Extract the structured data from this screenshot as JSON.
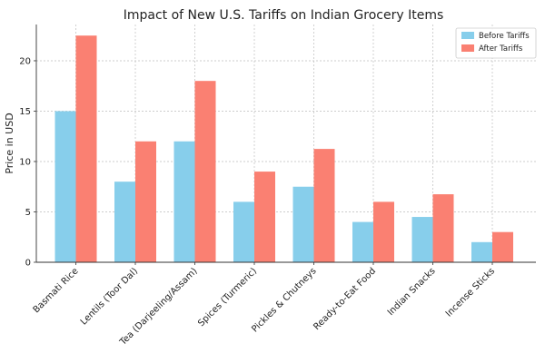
{
  "chart_data": {
    "type": "bar",
    "title": "Impact of New U.S. Tariffs on Indian Grocery Items",
    "xlabel": "",
    "ylabel": "Price in USD",
    "ylim": [
      0,
      23.6
    ],
    "yticks": [
      0,
      5,
      10,
      15,
      20
    ],
    "grid": true,
    "legend_position": "top-right",
    "categories": [
      "Basmati Rice",
      "Lentils (Toor Dal)",
      "Tea (Darjeeling/Assam)",
      "Spices (Turmeric)",
      "Pickles & Chutneys",
      "Ready-to-Eat Food",
      "Indian Snacks",
      "Incense Sticks"
    ],
    "series": [
      {
        "name": "Before Tariffs",
        "color": "#87CEEB",
        "values": [
          15,
          8,
          12,
          6,
          7.5,
          4,
          4.5,
          2
        ]
      },
      {
        "name": "After Tariffs",
        "color": "#FA8072",
        "values": [
          22.5,
          12,
          18,
          9,
          11.25,
          6,
          6.75,
          3
        ]
      }
    ]
  }
}
